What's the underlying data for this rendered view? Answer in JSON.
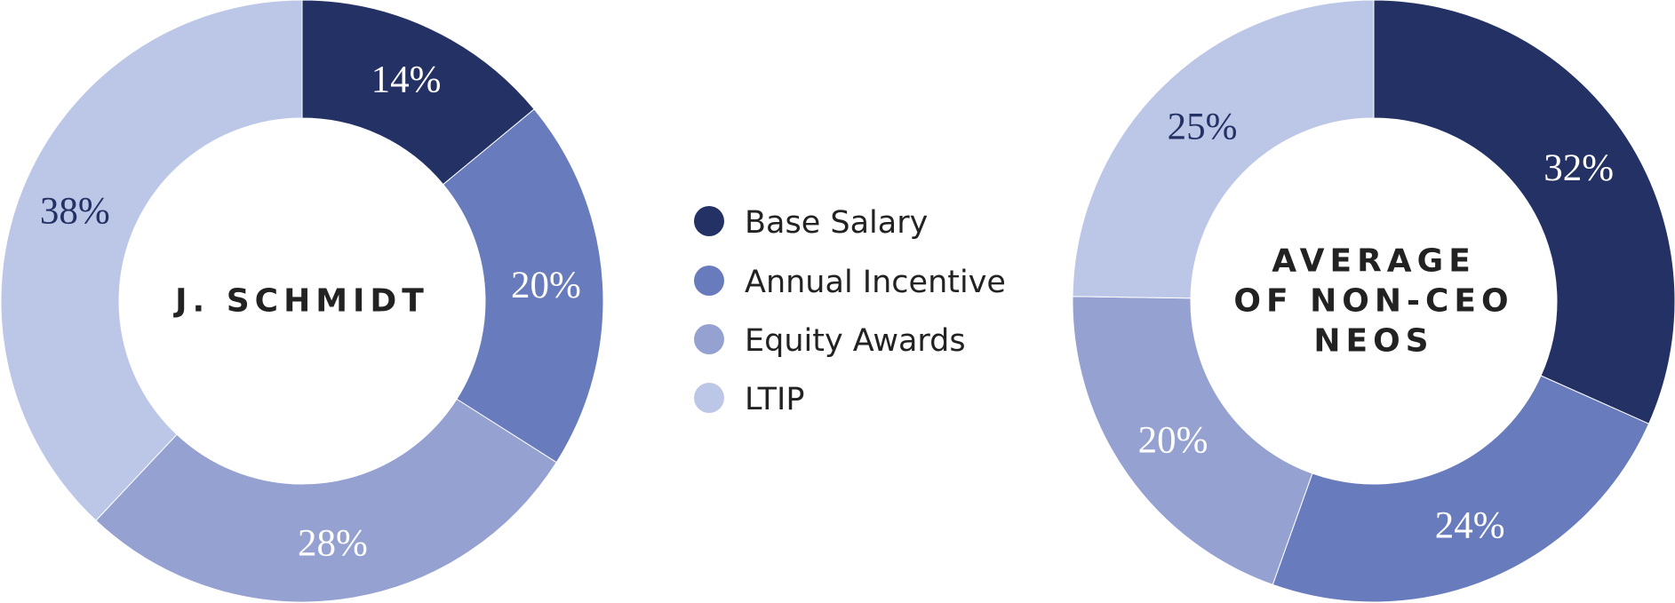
{
  "colors": {
    "base_salary": "#233165",
    "annual_incentive": "#687bbd",
    "equity_awards": "#95a1d1",
    "ltip": "#bcc7e7"
  },
  "legend": [
    {
      "label": "Base Salary",
      "color": "#233165"
    },
    {
      "label": "Annual Incentive",
      "color": "#687bbd"
    },
    {
      "label": "Equity Awards",
      "color": "#95a1d1"
    },
    {
      "label": "LTIP",
      "color": "#bcc7e7"
    }
  ],
  "chart_data": [
    {
      "type": "pie",
      "title": "J. SCHMIDT",
      "categories": [
        "Base Salary",
        "Annual Incentive",
        "Equity Awards",
        "LTIP"
      ],
      "values": [
        14,
        20,
        28,
        38
      ],
      "labels": [
        "14%",
        "20%",
        "28%",
        "38%"
      ]
    },
    {
      "type": "pie",
      "title": "AVERAGE OF NON-CEO NEOS",
      "title_lines": [
        "AVERAGE",
        "OF NON-CEO",
        "NEOS"
      ],
      "categories": [
        "Base Salary",
        "Annual Incentive",
        "Equity Awards",
        "LTIP"
      ],
      "values": [
        32,
        24,
        20,
        25
      ],
      "labels": [
        "32%",
        "24%",
        "20%",
        "25%"
      ]
    }
  ]
}
